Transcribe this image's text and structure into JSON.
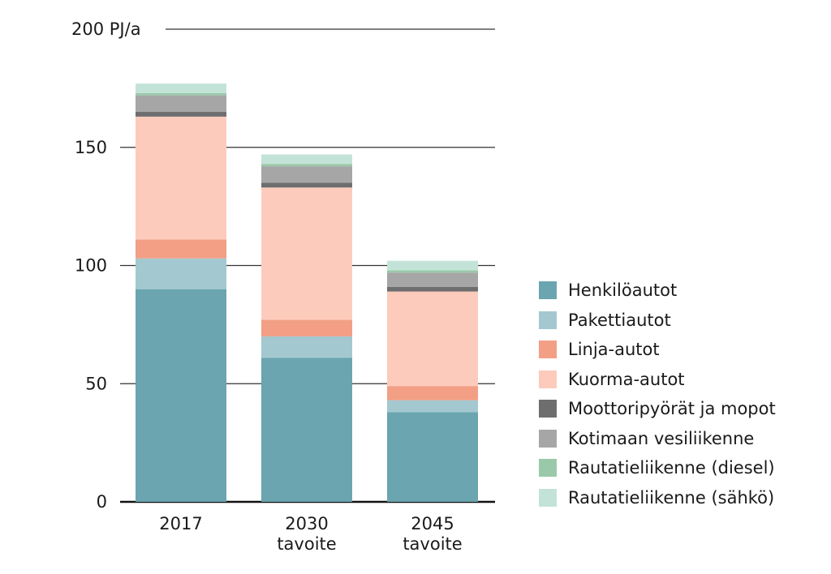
{
  "chart_data": {
    "type": "bar",
    "stacked": true,
    "unit_label": "PJ/a",
    "categories": [
      [
        "2017"
      ],
      [
        "2030",
        "tavoite"
      ],
      [
        "2045",
        "tavoite"
      ]
    ],
    "ylim": [
      0,
      200
    ],
    "yticks": [
      0,
      50,
      100,
      150,
      200
    ],
    "ytick_labels": [
      "0",
      "50",
      "100",
      "150",
      "200 PJ/a"
    ],
    "grid": true,
    "legend_position": "right",
    "series": [
      {
        "name": "Henkilöautot",
        "color": "#6aa5b0",
        "values": [
          90,
          61,
          38
        ]
      },
      {
        "name": "Pakettiautot",
        "color": "#a3c8d0",
        "values": [
          13,
          9,
          5
        ]
      },
      {
        "name": "Linja-autot",
        "color": "#f29f86",
        "values": [
          8,
          7,
          6
        ]
      },
      {
        "name": "Kuorma-autot",
        "color": "#fdcbbb",
        "values": [
          52,
          56,
          40
        ]
      },
      {
        "name": "Moottoripyörät ja mopot",
        "color": "#6e6e6e",
        "values": [
          2,
          2,
          2
        ]
      },
      {
        "name": "Kotimaan vesiliikenne",
        "color": "#a6a6a6",
        "values": [
          7,
          7,
          6
        ]
      },
      {
        "name": "Rautatieliikenne (diesel)",
        "color": "#9ac9a9",
        "values": [
          1,
          1,
          1
        ]
      },
      {
        "name": "Rautatieliikenne (sähkö)",
        "color": "#c4e3d8",
        "values": [
          4,
          4,
          4
        ]
      }
    ]
  }
}
